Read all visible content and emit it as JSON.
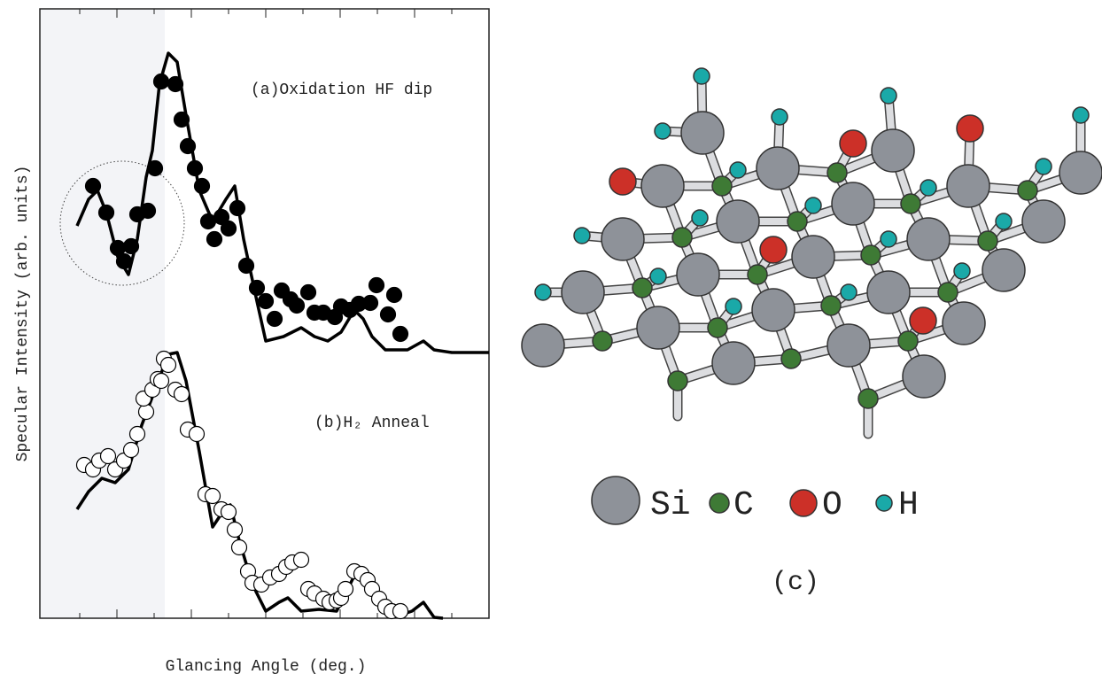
{
  "chart_data": {
    "type": "scatter",
    "ylabel": "Specular Intensity (arb. units)",
    "xlabel": "Glancing Angle (deg.)",
    "annotations": [
      "(a)Oxidation  HF dip",
      "(b)H₂ Anneal"
    ],
    "xlim": [
      0,
      507
    ],
    "ylim": [
      0,
      688
    ],
    "series": [
      {
        "mode": "markers",
        "color": "#000000",
        "fill": "#000000",
        "x": [
          60,
          75,
          88,
          95,
          103,
          110,
          122,
          130,
          137,
          153,
          160,
          167,
          175,
          183,
          190,
          197,
          205,
          213,
          223,
          233,
          245,
          255,
          265,
          273,
          283,
          290,
          303,
          310,
          320,
          333,
          340,
          350,
          360,
          373,
          380,
          393,
          400,
          407
        ],
        "values": [
          488,
          458,
          418,
          403,
          420,
          456,
          460,
          508,
          606,
          603,
          563,
          533,
          508,
          488,
          448,
          428,
          453,
          440,
          463,
          398,
          373,
          358,
          338,
          370,
          360,
          353,
          368,
          345,
          345,
          340,
          352,
          348,
          355,
          356,
          376,
          343,
          365,
          321
        ]
      },
      {
        "mode": "line",
        "color": "#000000",
        "x": [
          42,
          55,
          65,
          75,
          88,
          100,
          110,
          120,
          127,
          135,
          145,
          155,
          165,
          180,
          195,
          210,
          220,
          230,
          245,
          255,
          275,
          295,
          310,
          325,
          340,
          355,
          365,
          375,
          390,
          415,
          433,
          445,
          465,
          507
        ],
        "values": [
          443,
          473,
          483,
          458,
          408,
          388,
          428,
          498,
          528,
          603,
          638,
          628,
          568,
          483,
          448,
          473,
          488,
          428,
          358,
          313,
          318,
          328,
          318,
          313,
          323,
          348,
          338,
          318,
          303,
          303,
          313,
          303,
          300,
          300
        ]
      },
      {
        "mode": "markers",
        "color": "#000000",
        "fill": "#ffffff",
        "x": [
          50,
          60,
          67,
          77,
          85,
          95,
          103,
          110,
          120,
          117,
          127,
          133,
          137,
          140,
          145,
          153,
          160,
          167,
          177,
          187,
          195,
          205,
          213,
          220,
          225,
          235,
          240,
          250,
          260,
          270,
          278,
          285,
          295,
          303,
          310,
          320,
          327,
          335,
          340,
          345,
          355,
          363,
          370,
          375,
          383,
          390,
          397,
          407
        ],
        "values": [
          173,
          168,
          178,
          183,
          168,
          178,
          190,
          208,
          233,
          248,
          258,
          270,
          268,
          293,
          286,
          258,
          253,
          213,
          208,
          140,
          138,
          123,
          120,
          100,
          80,
          53,
          40,
          38,
          46,
          50,
          58,
          63,
          66,
          33,
          28,
          22,
          18,
          20,
          23,
          33,
          53,
          50,
          43,
          33,
          22,
          13,
          8,
          8
        ]
      },
      {
        "mode": "line",
        "color": "#000000",
        "x": [
          42,
          55,
          70,
          85,
          100,
          115,
          130,
          145,
          155,
          165,
          180,
          195,
          205,
          215,
          225,
          240,
          255,
          270,
          280,
          295,
          315,
          335,
          350,
          360,
          370,
          385,
          405,
          420,
          433,
          445,
          455
        ],
        "values": [
          123,
          143,
          158,
          153,
          168,
          218,
          258,
          298,
          300,
          268,
          188,
          103,
          118,
          128,
          88,
          38,
          8,
          18,
          23,
          8,
          10,
          8,
          38,
          58,
          48,
          13,
          3,
          8,
          18,
          1,
          0
        ]
      }
    ]
  },
  "diagram": {
    "legend": [
      "Si",
      "C",
      "O",
      "H"
    ],
    "caption": "(c)"
  }
}
